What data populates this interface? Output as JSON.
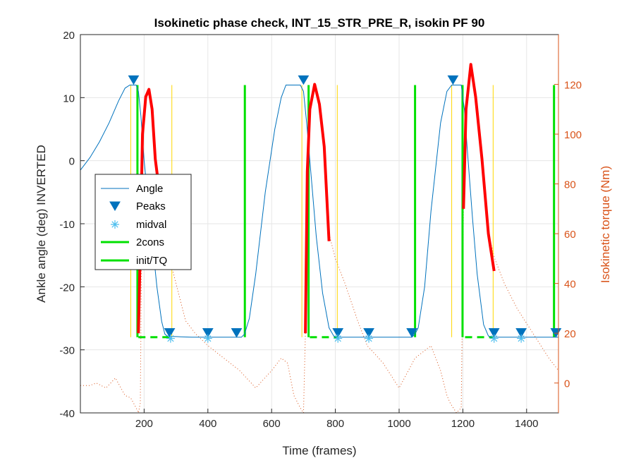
{
  "chart_data": {
    "type": "line",
    "title": "Isokinetic phase check, INT_15_STR_PRE_R, isokin PF 90",
    "xlabel": "Time (frames)",
    "ylabel_left": "Ankle angle (deg) INVERTED",
    "ylabel_right": "Isokinetic torque (Nm)",
    "xlim": [
      0,
      1500
    ],
    "ylim_left": [
      -40,
      20
    ],
    "ylim_right": [
      -12,
      140
    ],
    "x_ticks": [
      "200",
      "400",
      "600",
      "800",
      "1000",
      "1200",
      "1400"
    ],
    "y_left_ticks": [
      "20",
      "10",
      "0",
      "-10",
      "-20",
      "-30",
      "-40"
    ],
    "y_right_ticks": [
      "120",
      "100",
      "80",
      "60",
      "40",
      "20",
      "0"
    ],
    "grid": true,
    "legend": {
      "placement": "left",
      "entries": [
        {
          "label": "Angle",
          "style": "line",
          "color": "#0072BD"
        },
        {
          "label": "Peaks",
          "style": "triangle-down",
          "color": "#0072BD"
        },
        {
          "label": "midval",
          "style": "asterisk",
          "color": "#4DBEEE"
        },
        {
          "label": "2cons",
          "style": "line",
          "color": "#00E000"
        },
        {
          "label": "init/TQ",
          "style": "line",
          "color": "#00E000"
        }
      ]
    },
    "colors": {
      "angle": "#0072BD",
      "peaks": "#0072BD",
      "midval": "#4DBEEE",
      "markers": "#00E000",
      "yellow": "#FFD700",
      "torque_active": "#FF0000",
      "torque_dotted": "#D95319",
      "right_axis": "#D95319"
    },
    "series": [
      {
        "name": "Angle",
        "axis": "left",
        "x": [
          0,
          30,
          60,
          90,
          120,
          140,
          155,
          165,
          175,
          182,
          190,
          200,
          220,
          240,
          255,
          265,
          272,
          280,
          300,
          350,
          400,
          450,
          490,
          505,
          515,
          530,
          550,
          580,
          610,
          630,
          645,
          655,
          660,
          670,
          690,
          700,
          710,
          725,
          740,
          760,
          780,
          795,
          800,
          820,
          900,
          1000,
          1040,
          1050,
          1060,
          1080,
          1100,
          1130,
          1150,
          1165,
          1170,
          1180,
          1195,
          1205,
          1215,
          1230,
          1245,
          1265,
          1280,
          1290,
          1300,
          1320,
          1400,
          1500
        ],
        "y": [
          -1.5,
          0.5,
          3,
          6,
          9.5,
          11.5,
          12,
          12,
          12,
          11,
          7,
          0,
          -10,
          -20,
          -25.5,
          -27.5,
          -27.8,
          -27.9,
          -27.9,
          -28,
          -28,
          -28,
          -28,
          -28,
          -27.5,
          -25,
          -18,
          -5,
          5,
          10,
          12,
          12,
          12,
          12,
          12,
          11,
          6,
          -3,
          -12,
          -21,
          -26.5,
          -27.8,
          -28,
          -28,
          -28,
          -28,
          -28,
          -27.5,
          -26.5,
          -20,
          -8,
          6,
          11,
          12,
          12,
          12,
          12,
          8,
          1,
          -9,
          -18,
          -26,
          -27.8,
          -28,
          -28,
          -28,
          -28,
          -28
        ]
      },
      {
        "name": "Peaks",
        "axis": "left",
        "x": [
          167,
          700,
          1169
        ],
        "y": [
          12.8,
          12.8,
          12.8
        ]
      },
      {
        "name": "Peaks",
        "axis": "left",
        "x": [
          280,
          400,
          490,
          808,
          905,
          1040,
          1298,
          1383,
          1492
        ],
        "y": [
          -27.3,
          -27.3,
          -27.3,
          -27.3,
          -27.3,
          -27.3,
          -27.3,
          -27.3,
          -27.3
        ]
      },
      {
        "name": "midval",
        "axis": "left",
        "x": [
          283,
          400,
          808,
          905,
          1298,
          1383
        ],
        "y": [
          -28.2,
          -28.2,
          -28.2,
          -28.2,
          -28.2,
          -28.2
        ]
      },
      {
        "name": "2cons",
        "axis": "left",
        "x": [
          179,
          179,
          516,
          516,
          716,
          716,
          1050,
          1050,
          1199,
          1199,
          1486,
          1486
        ],
        "y": [
          -28,
          12,
          -28,
          12,
          -28,
          12,
          -28,
          12,
          -28,
          12,
          -28,
          12
        ]
      },
      {
        "name": "init/TQ",
        "axis": "left",
        "x": [
          182,
          286,
          720,
          808,
          1207,
          1296
        ],
        "y": [
          -28,
          -28,
          -28,
          -28,
          -28,
          -28
        ]
      },
      {
        "name": "",
        "axis": "left",
        "x": [
          158,
          158,
          287,
          287,
          695,
          695,
          806,
          806,
          1165,
          1165,
          1295,
          1295
        ],
        "y": [
          -28,
          12,
          -28,
          12,
          -28,
          12,
          -28,
          12,
          -28,
          12,
          -28,
          12
        ]
      },
      {
        "name": "",
        "axis": "right",
        "x": [
          0,
          30,
          50,
          80,
          110,
          140,
          158,
          175,
          182,
          188,
          195,
          205,
          215,
          225,
          235,
          245,
          255,
          265,
          280,
          300,
          330,
          360,
          400,
          450,
          500,
          550,
          600,
          630,
          650,
          670,
          690,
          700,
          706,
          712,
          720,
          735,
          750,
          765,
          780,
          800,
          830,
          870,
          900,
          950,
          1000,
          1050,
          1100,
          1130,
          1150,
          1160,
          1170,
          1180,
          1195,
          1202,
          1210,
          1225,
          1240,
          1260,
          1280,
          1300,
          1330,
          1370,
          1420,
          1470,
          1500
        ],
        "y": [
          -1,
          -1,
          0,
          -2,
          2,
          -5,
          -6,
          -10,
          -12,
          -8,
          100,
          115,
          118,
          110,
          90,
          80,
          70,
          60,
          50,
          40,
          25,
          20,
          15,
          10,
          5,
          -2,
          5,
          10,
          8,
          -5,
          -10,
          -12,
          20,
          85,
          110,
          120,
          112,
          95,
          60,
          50,
          40,
          25,
          15,
          8,
          -2,
          10,
          15,
          5,
          -5,
          -8,
          -10,
          -12,
          -10,
          70,
          110,
          128,
          115,
          90,
          60,
          50,
          40,
          30,
          20,
          10,
          5
        ]
      },
      {
        "name": "",
        "axis": "right",
        "x": [
          182,
          188,
          195,
          205,
          215,
          225,
          235,
          245,
          255,
          265,
          706,
          712,
          720,
          735,
          750,
          765,
          780,
          1202,
          1210,
          1225,
          1240,
          1260,
          1280,
          1298
        ],
        "y": [
          20,
          55,
          100,
          115,
          118,
          110,
          90,
          80,
          70,
          60,
          20,
          85,
          110,
          120,
          112,
          95,
          57,
          70,
          110,
          128,
          115,
          90,
          60,
          45
        ]
      }
    ]
  }
}
